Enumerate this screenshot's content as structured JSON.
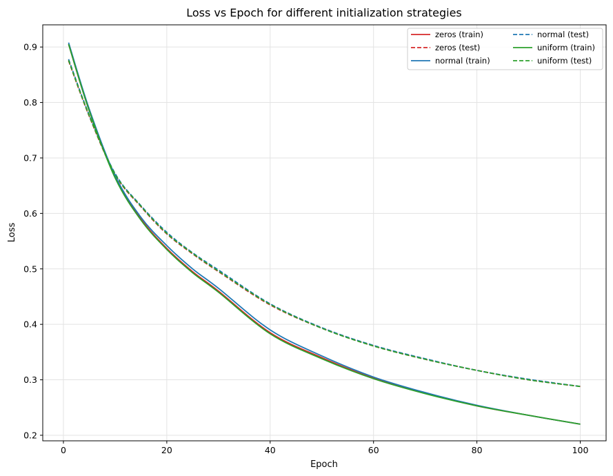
{
  "chart_data": {
    "type": "line",
    "title": "Loss vs Epoch for different initialization strategies",
    "xlabel": "Epoch",
    "ylabel": "Loss",
    "xlim": [
      -4,
      105
    ],
    "ylim": [
      0.19,
      0.94
    ],
    "xticks": [
      0,
      20,
      40,
      60,
      80,
      100
    ],
    "yticks": [
      0.2,
      0.3,
      0.4,
      0.5,
      0.6,
      0.7,
      0.8,
      0.9
    ],
    "xtick_labels": [
      "0",
      "20",
      "40",
      "60",
      "80",
      "100"
    ],
    "ytick_labels": [
      "0.2",
      "0.3",
      "0.4",
      "0.5",
      "0.6",
      "0.7",
      "0.8",
      "0.9"
    ],
    "grid": true,
    "legend_position": "top-right",
    "legend_columns": 2,
    "colors": {
      "zeros": "#d62728",
      "normal": "#1f77b4",
      "uniform": "#2ca02c"
    },
    "series": [
      {
        "name": "zeros (train)",
        "color": "#d62728",
        "dash": "solid",
        "x": [
          1,
          5,
          10,
          15,
          20,
          25,
          30,
          40,
          50,
          60,
          70,
          80,
          90,
          100
        ],
        "values": [
          0.905,
          0.785,
          0.665,
          0.59,
          0.537,
          0.495,
          0.46,
          0.385,
          0.34,
          0.303,
          0.276,
          0.253,
          0.236,
          0.22
        ]
      },
      {
        "name": "zeros (test)",
        "color": "#d62728",
        "dash": "dashed",
        "x": [
          1,
          5,
          10,
          15,
          20,
          25,
          30,
          40,
          50,
          60,
          70,
          80,
          90,
          100
        ],
        "values": [
          0.875,
          0.775,
          0.67,
          0.612,
          0.563,
          0.527,
          0.495,
          0.435,
          0.393,
          0.361,
          0.337,
          0.317,
          0.3,
          0.288
        ]
      },
      {
        "name": "normal (train)",
        "color": "#1f77b4",
        "dash": "solid",
        "x": [
          1,
          5,
          10,
          15,
          20,
          25,
          30,
          40,
          50,
          60,
          70,
          80,
          90,
          100
        ],
        "values": [
          0.908,
          0.788,
          0.668,
          0.593,
          0.542,
          0.5,
          0.465,
          0.39,
          0.343,
          0.305,
          0.277,
          0.254,
          0.236,
          0.22
        ]
      },
      {
        "name": "normal (test)",
        "color": "#1f77b4",
        "dash": "dashed",
        "x": [
          1,
          5,
          10,
          15,
          20,
          25,
          30,
          40,
          50,
          60,
          70,
          80,
          90,
          100
        ],
        "values": [
          0.878,
          0.777,
          0.672,
          0.614,
          0.566,
          0.529,
          0.498,
          0.437,
          0.394,
          0.362,
          0.338,
          0.317,
          0.301,
          0.288
        ]
      },
      {
        "name": "uniform (train)",
        "color": "#2ca02c",
        "dash": "solid",
        "x": [
          1,
          5,
          10,
          15,
          20,
          25,
          30,
          40,
          50,
          60,
          70,
          80,
          90,
          100
        ],
        "values": [
          0.905,
          0.785,
          0.664,
          0.588,
          0.535,
          0.493,
          0.458,
          0.383,
          0.338,
          0.302,
          0.275,
          0.253,
          0.236,
          0.22
        ]
      },
      {
        "name": "uniform (test)",
        "color": "#2ca02c",
        "dash": "dashed",
        "x": [
          1,
          5,
          10,
          15,
          20,
          25,
          30,
          40,
          50,
          60,
          70,
          80,
          90,
          100
        ],
        "values": [
          0.876,
          0.776,
          0.671,
          0.613,
          0.564,
          0.528,
          0.496,
          0.436,
          0.393,
          0.361,
          0.337,
          0.317,
          0.3,
          0.288
        ]
      }
    ]
  }
}
